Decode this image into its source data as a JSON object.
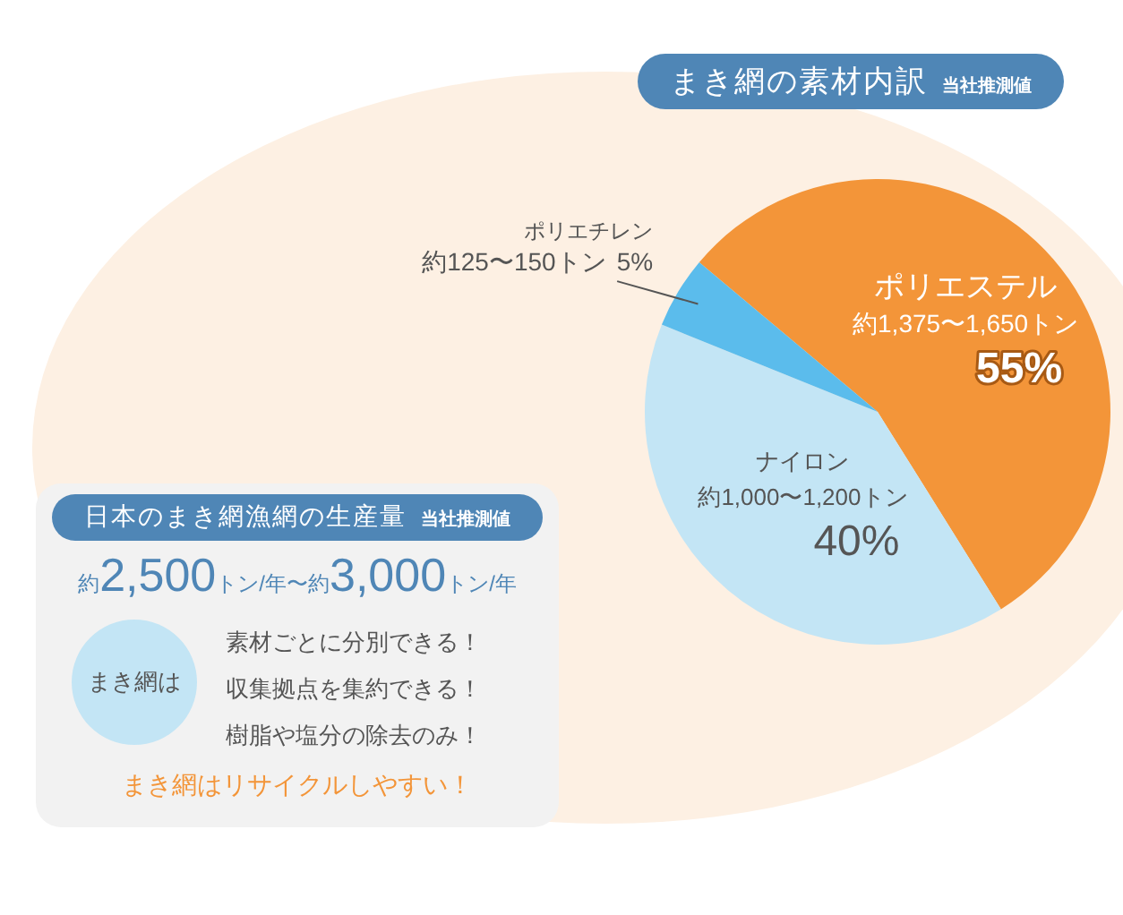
{
  "chart_data": [
    {
      "type": "pie",
      "title": "まき網の素材内訳",
      "subtitle": "当社推測値",
      "categories": [
        "ポリエステル",
        "ナイロン",
        "ポリエチレン"
      ],
      "values": [
        55,
        40,
        5
      ],
      "colors": [
        "#f39539",
        "#c3e5f5",
        "#5bbcec"
      ],
      "value_labels": [
        "55%",
        "40%",
        "5%"
      ],
      "annotations": [
        {
          "text": "約1,375〜1,650トン",
          "x": "ポリエステル"
        },
        {
          "text": "約1,000〜1,200トン",
          "x": "ナイロン"
        },
        {
          "text": "約125〜150トン",
          "x": "ポリエチレン"
        }
      ],
      "legend": false
    },
    {
      "type": "other",
      "title": "日本のまき網漁網の生産量",
      "subtitle": "当社推測値",
      "annotations": [
        "約2,500トン/年〜約3,000トン/年",
        "まき網は",
        "素材ごとに分別できる！",
        "収集拠点を集約できる！",
        "樹脂や塩分の除去のみ！",
        "まき網はリサイクルしやすい！"
      ]
    }
  ]
}
